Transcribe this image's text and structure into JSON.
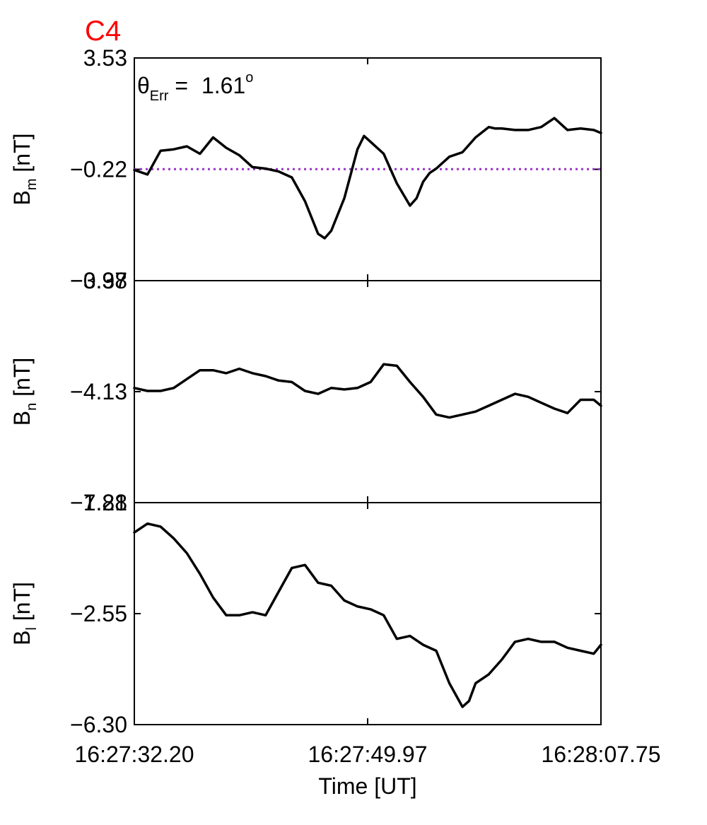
{
  "figure": {
    "title": "C4",
    "title_color": "#ff0000",
    "annotation": {
      "symbol": "θ",
      "subscript": "Err",
      "equals": " = ",
      "value": "1.61",
      "unit": "o"
    },
    "xlabel": "Time [UT]",
    "xticks": [
      "16:27:32.20",
      "16:27:49.97",
      "16:28:07.75"
    ],
    "line_color": "#000000",
    "reference_color": "#9933cc"
  },
  "chart_data": [
    {
      "type": "line",
      "ylabel": {
        "main": "B",
        "sub": "m",
        "unit": " [nT]"
      },
      "yticks": [
        "3.53",
        "−0.22",
        "−3.98"
      ],
      "ylim": [
        -3.98,
        3.53
      ],
      "xlim": [
        0,
        35.55
      ],
      "reference_line": -0.22,
      "x": [
        0,
        1,
        2,
        3,
        4,
        5,
        6,
        7,
        8,
        9,
        10,
        10.5,
        11,
        12,
        13,
        14,
        14.5,
        15,
        16,
        17,
        17.5,
        18,
        19,
        19.5,
        20,
        21,
        21.5,
        22,
        22.5,
        23,
        24,
        25,
        26,
        27,
        27.5,
        28,
        29,
        30,
        31,
        32,
        33,
        34,
        35,
        35.55
      ],
      "y": [
        -0.25,
        -0.4,
        0.4,
        0.45,
        0.55,
        0.3,
        0.85,
        0.5,
        0.25,
        -0.15,
        -0.2,
        -0.25,
        -0.3,
        -0.5,
        -1.3,
        -2.4,
        -2.55,
        -2.3,
        -1.2,
        0.45,
        0.9,
        0.7,
        0.3,
        -0.2,
        -0.7,
        -1.45,
        -1.2,
        -0.65,
        -0.35,
        -0.2,
        0.2,
        0.35,
        0.85,
        1.2,
        1.15,
        1.15,
        1.1,
        1.1,
        1.2,
        1.5,
        1.1,
        1.15,
        1.1,
        1.0
      ]
    },
    {
      "type": "line",
      "ylabel": {
        "main": "B",
        "sub": "n",
        "unit": " [nT]"
      },
      "yticks": [
        "−0.37",
        "−4.13",
        "−7.88"
      ],
      "ylim": [
        -7.88,
        -0.37
      ],
      "xlim": [
        0,
        35.55
      ],
      "x": [
        0,
        1,
        2,
        3,
        4,
        5,
        6,
        7,
        8,
        9,
        10,
        11,
        12,
        13,
        14,
        15,
        16,
        17,
        18,
        19,
        20,
        21,
        22,
        23,
        24,
        25,
        26,
        27,
        28,
        29,
        30,
        31,
        32,
        33,
        34,
        35,
        35.55
      ],
      "y": [
        -4.0,
        -4.1,
        -4.1,
        -4.0,
        -3.7,
        -3.4,
        -3.4,
        -3.5,
        -3.35,
        -3.5,
        -3.6,
        -3.75,
        -3.8,
        -4.1,
        -4.2,
        -4.0,
        -4.05,
        -4.0,
        -3.8,
        -3.2,
        -3.25,
        -3.8,
        -4.3,
        -4.9,
        -5.0,
        -4.9,
        -4.8,
        -4.6,
        -4.4,
        -4.2,
        -4.3,
        -4.5,
        -4.7,
        -4.85,
        -4.4,
        -4.4,
        -4.6
      ]
    },
    {
      "type": "line",
      "ylabel": {
        "main": "B",
        "sub": "l",
        "unit": " [nT]"
      },
      "yticks": [
        "1.21",
        "−2.55",
        "−6.30"
      ],
      "ylim": [
        -6.3,
        1.21
      ],
      "xlim": [
        0,
        35.55
      ],
      "x": [
        0,
        1,
        2,
        3,
        4,
        5,
        6,
        7,
        8,
        9,
        10,
        11,
        12,
        13,
        14,
        15,
        16,
        17,
        18,
        19,
        20,
        21,
        22,
        23,
        24,
        25,
        25.5,
        26,
        27,
        28,
        29,
        30,
        31,
        32,
        33,
        34,
        35,
        35.55
      ],
      "y": [
        0.2,
        0.5,
        0.4,
        0.0,
        -0.5,
        -1.2,
        -2.0,
        -2.6,
        -2.6,
        -2.5,
        -2.6,
        -1.8,
        -1.0,
        -0.9,
        -1.5,
        -1.6,
        -2.1,
        -2.3,
        -2.4,
        -2.6,
        -3.4,
        -3.3,
        -3.6,
        -3.8,
        -4.9,
        -5.7,
        -5.5,
        -4.9,
        -4.6,
        -4.1,
        -3.5,
        -3.4,
        -3.5,
        -3.5,
        -3.7,
        -3.8,
        -3.9,
        -3.6
      ]
    }
  ]
}
